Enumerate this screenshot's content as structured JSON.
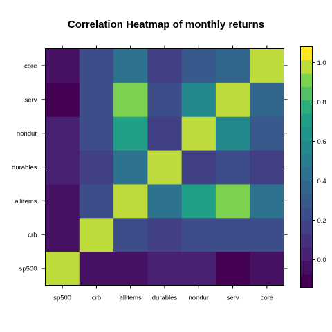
{
  "chart_data": {
    "type": "heatmap",
    "title": "Correlation Heatmap of monthly returns",
    "xlabel": "",
    "ylabel": "",
    "variables": [
      "sp500",
      "crb",
      "allitems",
      "durables",
      "nondur",
      "serv",
      "core"
    ],
    "x_categories": [
      "sp500",
      "crb",
      "allitems",
      "durables",
      "nondur",
      "serv",
      "core"
    ],
    "y_categories_top_to_bottom": [
      "core",
      "serv",
      "nondur",
      "durables",
      "allitems",
      "crb",
      "sp500"
    ],
    "matrix": [
      [
        1.0,
        -0.05,
        -0.05,
        0.0,
        0.0,
        -0.14,
        -0.02
      ],
      [
        -0.05,
        1.0,
        0.2,
        0.15,
        0.2,
        0.2,
        0.2
      ],
      [
        -0.05,
        0.2,
        1.0,
        0.43,
        0.74,
        0.9,
        0.43
      ],
      [
        0.0,
        0.15,
        0.43,
        1.0,
        0.15,
        0.2,
        0.15
      ],
      [
        0.0,
        0.2,
        0.74,
        0.15,
        1.0,
        0.55,
        0.3
      ],
      [
        -0.14,
        0.2,
        0.9,
        0.2,
        0.55,
        1.0,
        0.38
      ],
      [
        -0.02,
        0.2,
        0.43,
        0.15,
        0.3,
        0.38,
        1.0
      ]
    ],
    "colorbar": {
      "min": -0.14,
      "max": 1.08,
      "levels": 18,
      "ticks": [
        0.0,
        0.2,
        0.4,
        0.6,
        0.8,
        1.0
      ],
      "tick_labels": [
        "0.0",
        "0.2",
        "0.4",
        "0.6",
        "0.8",
        "1.0"
      ],
      "palette": "viridis"
    }
  }
}
